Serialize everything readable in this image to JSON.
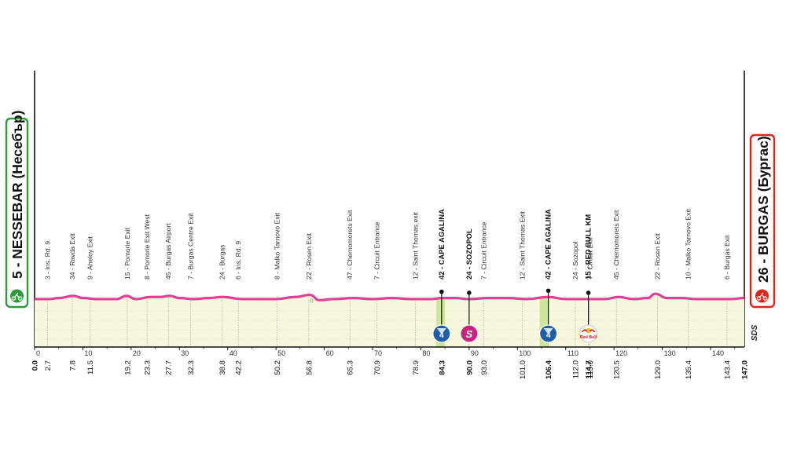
{
  "colors": {
    "profile": "#e23f96",
    "fill": "#f7f7dd",
    "climb_band": "#cde79a",
    "start_border": "#2a9d3a",
    "finish_border": "#e2231a",
    "sprint": "#c7247d",
    "kom": "#1f5fa8",
    "axis": "#111111"
  },
  "start": {
    "label": "5 - NESSEBAR (Несебър)",
    "icon": "cyclist-icon"
  },
  "finish": {
    "label": "26 - BURGAS (Бургас)",
    "icon": "cyclist-icon"
  },
  "brand": "SDS",
  "chart_data": {
    "type": "area",
    "title": "",
    "xlabel": "",
    "ylabel": "",
    "xlim": [
      0,
      147
    ],
    "x_ticks": [
      0,
      10,
      20,
      30,
      40,
      50,
      60,
      70,
      80,
      90,
      100,
      110,
      120,
      130,
      140
    ],
    "profile_km": [
      0,
      3,
      5,
      8,
      10,
      13,
      17,
      19,
      21,
      24,
      26,
      28,
      30,
      33,
      36,
      39,
      43,
      47,
      50,
      54,
      57,
      59,
      62,
      66,
      70,
      74,
      78,
      82,
      84.3,
      87,
      90,
      94,
      98,
      102,
      106.4,
      110,
      113,
      115,
      118,
      121,
      124,
      127,
      128.5,
      131,
      134,
      137,
      141,
      144,
      147
    ],
    "profile_level": [
      3,
      3,
      4,
      6,
      4,
      3,
      3,
      6,
      3,
      5,
      5,
      6,
      4,
      3,
      4,
      5,
      3,
      3,
      3,
      5,
      7,
      2,
      3,
      4,
      3,
      4,
      3,
      3,
      4,
      4,
      3,
      4,
      4,
      3,
      5,
      3,
      3,
      3,
      3,
      5,
      3,
      4,
      8,
      4,
      4,
      3,
      3,
      3,
      4
    ],
    "climb_bands": [
      {
        "from": 83.2,
        "to": 85
      },
      {
        "from": 104.6,
        "to": 106.5
      }
    ],
    "flat_mark_km": 57.4,
    "flat_mark_text": "0",
    "markers": [
      {
        "km": 84.3,
        "kind": "kom",
        "text": "4"
      },
      {
        "km": 90.0,
        "kind": "sprint",
        "text": "S"
      },
      {
        "km": 106.4,
        "kind": "kom",
        "text": "4"
      },
      {
        "km": 114.7,
        "kind": "redbull",
        "text": "Red Bull"
      }
    ],
    "waypoints": [
      {
        "km": 0.0,
        "dist": "0.0",
        "name": "",
        "bold": true
      },
      {
        "km": 2.7,
        "dist": "2.7",
        "name": "3 - Ins. Rd. 9"
      },
      {
        "km": 7.8,
        "dist": "7.8",
        "name": "34 - Ravda Exit"
      },
      {
        "km": 11.5,
        "dist": "11.5",
        "name": "9 - Aheloy Exit"
      },
      {
        "km": 19.2,
        "dist": "19.2",
        "name": "15 - Pomorie Exit"
      },
      {
        "km": 23.3,
        "dist": "23.3",
        "name": "8 - Pomorie Exit West"
      },
      {
        "km": 27.7,
        "dist": "27.7",
        "name": "45 - Burgas Airport"
      },
      {
        "km": 32.3,
        "dist": "32.3",
        "name": "7 - Burgas Centre Exit"
      },
      {
        "km": 38.8,
        "dist": "38.8",
        "name": "24 - Burgas"
      },
      {
        "km": 42.2,
        "dist": "42.2",
        "name": "6 - Ins. Rd. 9"
      },
      {
        "km": 50.2,
        "dist": "50.2",
        "name": "8 - Malko Tarnovo Exit"
      },
      {
        "km": 56.8,
        "dist": "56.8",
        "name": "22 - Rosen Exit"
      },
      {
        "km": 65.3,
        "dist": "65.3",
        "name": "47 - Chernomorets Exit"
      },
      {
        "km": 70.9,
        "dist": "70.9",
        "name": "7 - Circuit Entrance"
      },
      {
        "km": 78.9,
        "dist": "78.9",
        "name": "12 - Saint Thomas exit"
      },
      {
        "km": 84.3,
        "dist": "84.3",
        "name": "42 - CAPE AGALINA",
        "bold": true
      },
      {
        "km": 90.0,
        "dist": "90.0",
        "name": "24 - SOZOPOL",
        "bold": true
      },
      {
        "km": 93.0,
        "dist": "93.0",
        "name": "7 - Circuit Entrance"
      },
      {
        "km": 101.0,
        "dist": "101.0",
        "name": "12 - Saint Thomas Exit"
      },
      {
        "km": 106.4,
        "dist": "106.4",
        "name": "42 - CAPE AGALINA",
        "bold": true
      },
      {
        "km": 112.0,
        "dist": "112.0",
        "name": "24 - Sozopol"
      },
      {
        "km": 114.7,
        "dist": "114.7",
        "name": "15 - RED BULL KM",
        "bold": true
      },
      {
        "km": 115.0,
        "dist": "115.0",
        "name": "7 - Circuit Exit"
      },
      {
        "km": 120.5,
        "dist": "120.5",
        "name": "45 - Chernomorets Exit"
      },
      {
        "km": 129.0,
        "dist": "129.0",
        "name": "22 - Rosen Exit"
      },
      {
        "km": 135.4,
        "dist": "135.4",
        "name": "10 - Malko Tarnovo Exit"
      },
      {
        "km": 143.4,
        "dist": "143.4",
        "name": "6 - Burgas Exit"
      },
      {
        "km": 147.0,
        "dist": "147.0",
        "name": "",
        "bold": true
      }
    ]
  }
}
